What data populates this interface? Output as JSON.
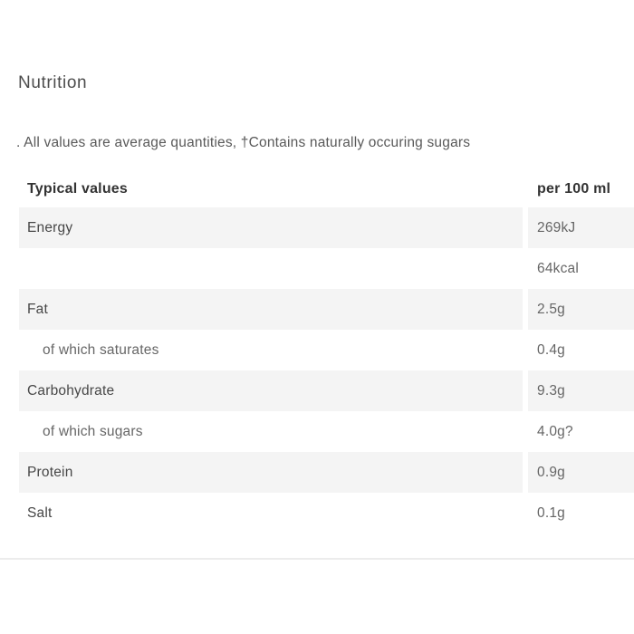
{
  "section": {
    "heading": "Nutrition",
    "note": ". All values are average quantities, †Contains naturally occuring sugars"
  },
  "table": {
    "header": {
      "label": "Typical values",
      "value": "per 100 ml"
    },
    "rows": [
      {
        "label": "Energy",
        "value": "269kJ"
      },
      {
        "label": "",
        "value": "64kcal"
      },
      {
        "label": "Fat",
        "value": "2.5g"
      },
      {
        "label": "of which saturates",
        "value": "0.4g"
      },
      {
        "label": "Carbohydrate",
        "value": "9.3g"
      },
      {
        "label": "of which sugars",
        "value": "4.0g?"
      },
      {
        "label": "Protein",
        "value": "0.9g"
      },
      {
        "label": "Salt",
        "value": "0.1g"
      }
    ]
  },
  "colors": {
    "row_stripe": "#f4f4f4",
    "divider": "#ececec",
    "heading_text": "#4d4d4d",
    "header_text": "#333333",
    "label_text": "#474747",
    "value_text": "#666666"
  }
}
